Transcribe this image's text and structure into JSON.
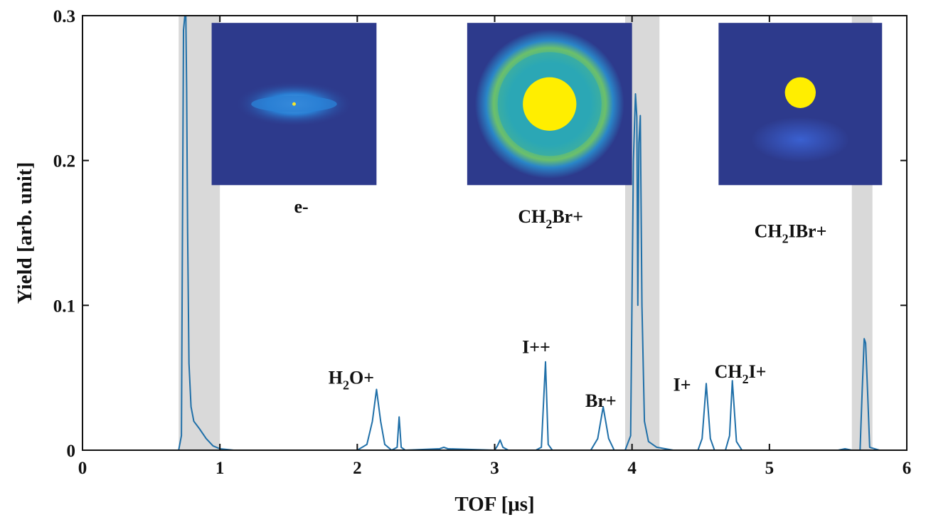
{
  "chart_data": {
    "type": "line",
    "xlabel": "TOF [μs]",
    "ylabel": "Yield [arb. unit]",
    "xlim": [
      0,
      6
    ],
    "ylim": [
      0,
      0.3
    ],
    "x_ticks": [
      {
        "value": 0,
        "label": "0"
      },
      {
        "value": 1,
        "label": "1"
      },
      {
        "value": 2,
        "label": "2"
      },
      {
        "value": 3,
        "label": "3"
      },
      {
        "value": 4,
        "label": "4"
      },
      {
        "value": 5,
        "label": "5"
      },
      {
        "value": 6,
        "label": "6"
      }
    ],
    "y_ticks": [
      {
        "value": 0,
        "label": "0"
      },
      {
        "value": 0.1,
        "label": "0.1"
      },
      {
        "value": 0.2,
        "label": "0.2"
      },
      {
        "value": 0.3,
        "label": "0.3"
      }
    ],
    "grid": false,
    "line_color": "#1f6fa8",
    "band_color": "#d9d9d9",
    "gates": [
      {
        "x_start": 0.7,
        "x_end": 1.0
      },
      {
        "x_start": 3.95,
        "x_end": 4.2
      },
      {
        "x_start": 5.6,
        "x_end": 5.75
      }
    ],
    "series": [
      {
        "points": [
          [
            0,
            0
          ],
          [
            0.7,
            0
          ],
          [
            0.72,
            0.01
          ],
          [
            0.735,
            0.29
          ],
          [
            0.745,
            0.3
          ],
          [
            0.752,
            0.3
          ],
          [
            0.758,
            0.25
          ],
          [
            0.765,
            0.15
          ],
          [
            0.775,
            0.06
          ],
          [
            0.79,
            0.03
          ],
          [
            0.81,
            0.02
          ],
          [
            0.85,
            0.015
          ],
          [
            0.9,
            0.008
          ],
          [
            0.95,
            0.003
          ],
          [
            1.0,
            0.001
          ],
          [
            1.1,
            0
          ],
          [
            2.0,
            0
          ],
          [
            2.07,
            0.004
          ],
          [
            2.11,
            0.02
          ],
          [
            2.14,
            0.042
          ],
          [
            2.17,
            0.02
          ],
          [
            2.2,
            0.004
          ],
          [
            2.25,
            0
          ],
          [
            2.29,
            0.002
          ],
          [
            2.305,
            0.023
          ],
          [
            2.32,
            0.002
          ],
          [
            2.35,
            0
          ],
          [
            2.6,
            0.001
          ],
          [
            2.63,
            0.002
          ],
          [
            2.66,
            0.001
          ],
          [
            3.0,
            0
          ],
          [
            3.02,
            0.003
          ],
          [
            3.04,
            0.007
          ],
          [
            3.06,
            0.002
          ],
          [
            3.1,
            0
          ],
          [
            3.3,
            0
          ],
          [
            3.34,
            0.002
          ],
          [
            3.37,
            0.061
          ],
          [
            3.39,
            0.004
          ],
          [
            3.42,
            0
          ],
          [
            3.7,
            0
          ],
          [
            3.75,
            0.008
          ],
          [
            3.79,
            0.03
          ],
          [
            3.83,
            0.008
          ],
          [
            3.87,
            0
          ],
          [
            3.95,
            0
          ],
          [
            3.99,
            0.01
          ],
          [
            4.01,
            0.2
          ],
          [
            4.025,
            0.246
          ],
          [
            4.035,
            0.23
          ],
          [
            4.042,
            0.1
          ],
          [
            4.05,
            0.212
          ],
          [
            4.06,
            0.231
          ],
          [
            4.072,
            0.1
          ],
          [
            4.09,
            0.02
          ],
          [
            4.12,
            0.006
          ],
          [
            4.18,
            0.002
          ],
          [
            4.3,
            0
          ],
          [
            4.48,
            0
          ],
          [
            4.51,
            0.008
          ],
          [
            4.54,
            0.046
          ],
          [
            4.57,
            0.008
          ],
          [
            4.6,
            0
          ],
          [
            4.68,
            0
          ],
          [
            4.71,
            0.01
          ],
          [
            4.73,
            0.048
          ],
          [
            4.76,
            0.006
          ],
          [
            4.8,
            0
          ],
          [
            5.5,
            0
          ],
          [
            5.55,
            0.001
          ],
          [
            5.6,
            0
          ],
          [
            5.66,
            0
          ],
          [
            5.675,
            0.04
          ],
          [
            5.69,
            0.077
          ],
          [
            5.7,
            0.074
          ],
          [
            5.715,
            0.04
          ],
          [
            5.73,
            0.002
          ],
          [
            5.8,
            0
          ],
          [
            6.0,
            0
          ]
        ]
      }
    ],
    "annotations": [
      {
        "text": "e-",
        "sub": "",
        "rest": "",
        "x": 1.54,
        "y": 0.164
      },
      {
        "text": "CH",
        "sub": "2",
        "rest": "Br+",
        "x": 3.17,
        "y": 0.157
      },
      {
        "text": "CH",
        "sub": "2",
        "rest": "IBr+",
        "x": 4.89,
        "y": 0.147
      },
      {
        "text": "H",
        "sub": "2",
        "rest": "O+",
        "x": 1.79,
        "y": 0.046
      },
      {
        "text": "I++",
        "sub": "",
        "rest": "",
        "x": 3.2,
        "y": 0.067
      },
      {
        "text": "Br+",
        "sub": "",
        "rest": "",
        "x": 3.66,
        "y": 0.03
      },
      {
        "text": "I+",
        "sub": "",
        "rest": "",
        "x": 4.3,
        "y": 0.041
      },
      {
        "text": "CH",
        "sub": "2",
        "rest": "I+",
        "x": 4.6,
        "y": 0.05
      }
    ],
    "inset_images": [
      {
        "name": "electron-image",
        "x_start": 0.94,
        "x_end": 2.14,
        "y_top": 0.295,
        "y_bottom": 0.183,
        "bg_color": "#2d3a8c",
        "blob_color": "#2a7fd4",
        "center_color": "#f5e62a",
        "shape": "elongated"
      },
      {
        "name": "ch2br-image",
        "x_start": 2.8,
        "x_end": 4.0,
        "y_top": 0.295,
        "y_bottom": 0.183,
        "bg_color": "#2d3a8c",
        "ring_color": "#2ba7b5",
        "center_color": "#ffee00",
        "shape": "ring"
      },
      {
        "name": "ch2ibr-image",
        "x_start": 4.63,
        "x_end": 5.82,
        "y_top": 0.295,
        "y_bottom": 0.183,
        "bg_color": "#2d3a8c",
        "blob_color": "#3350c0",
        "center_color": "#ffee00",
        "shape": "small-spot"
      }
    ]
  }
}
